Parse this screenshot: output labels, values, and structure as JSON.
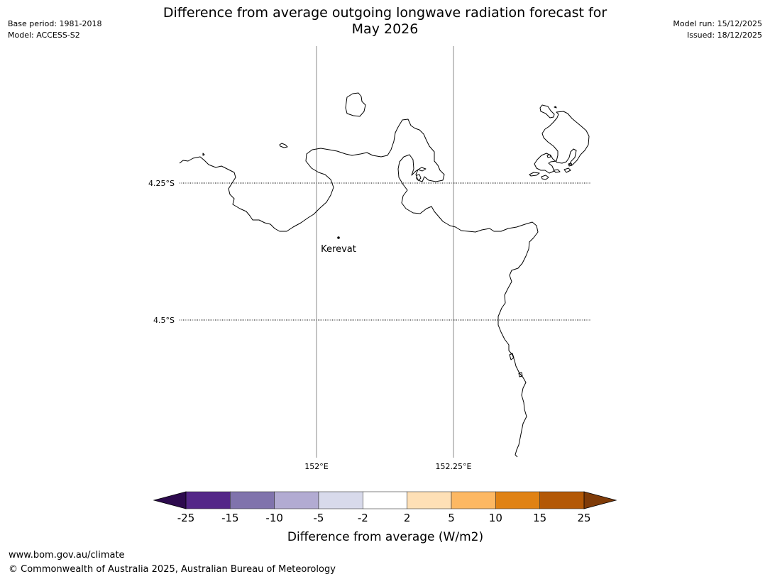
{
  "header": {
    "title_line1": "Difference from average outgoing longwave radiation forecast for",
    "title_line2": "May 2026",
    "base_period": "Base period: 1981-2018",
    "model": "Model: ACCESS-S2",
    "model_run": "Model run: 15/12/2025",
    "issued": "Issued: 18/12/2025"
  },
  "map": {
    "lat_labels": [
      "4.25°S",
      "4.5°S"
    ],
    "lon_labels": [
      "152°E",
      "152.25°E"
    ],
    "place": {
      "name": "Kerevat"
    },
    "coastline_color": "#000000",
    "gridline_color": "#888888"
  },
  "colorbar": {
    "label": "Difference from average (W/m2)",
    "ticks": [
      "-25",
      "-15",
      "-10",
      "-5",
      "-2",
      "2",
      "5",
      "10",
      "15",
      "25"
    ],
    "min_color": "#2d0a4e",
    "max_color": "#7f3b08",
    "bins": [
      {
        "from": -25,
        "to": -15,
        "color": "#542788"
      },
      {
        "from": -15,
        "to": -10,
        "color": "#8073ac"
      },
      {
        "from": -10,
        "to": -5,
        "color": "#b2abd2"
      },
      {
        "from": -5,
        "to": -2,
        "color": "#d8daeb"
      },
      {
        "from": -2,
        "to": 2,
        "color": "#ffffff"
      },
      {
        "from": 2,
        "to": 5,
        "color": "#fee0b6"
      },
      {
        "from": 5,
        "to": 10,
        "color": "#fdb863"
      },
      {
        "from": 10,
        "to": 15,
        "color": "#e08214"
      },
      {
        "from": 15,
        "to": 25,
        "color": "#b35806"
      }
    ]
  },
  "footer": {
    "url": "www.bom.gov.au/climate",
    "copyright": "© Commonwealth of Australia 2025, Australian Bureau of Meteorology"
  }
}
